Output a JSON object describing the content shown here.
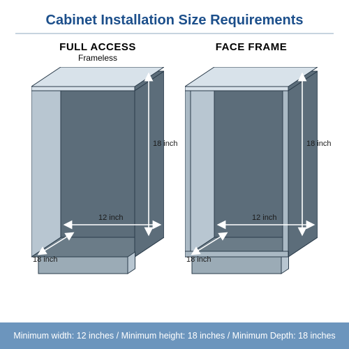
{
  "title": "Cabinet Installation Size Requirements",
  "title_color": "#1c4f8b",
  "rule_color": "#c7d4df",
  "columns": [
    {
      "heading": "FULL ACCESS",
      "subheading": "Frameless",
      "has_face_frame": false
    },
    {
      "heading": "FACE FRAME",
      "subheading": "",
      "has_face_frame": true
    }
  ],
  "dimensions": {
    "height_label": "18 inch",
    "width_label": "12 inch",
    "depth_label": "18 inch"
  },
  "arrow_color": "#ffffff",
  "label_color": "#0d0d0d",
  "cabinet": {
    "outer_w": 190,
    "outer_h": 300,
    "line_color": "#2a3b4a",
    "light_face": "#d8e2ea",
    "mid_face": "#b8c6d1",
    "dark_face": "#5c6d7a",
    "floor_face": "#6b7c88",
    "base_face": "#9babb6",
    "frame_lip": "#aab9c4"
  },
  "footer": {
    "text": "Minimum width: 12 inches / Minimum height: 18 inches / Minimum Depth: 18 inches",
    "background": "#6c95bd",
    "text_color": "#ffffff"
  }
}
